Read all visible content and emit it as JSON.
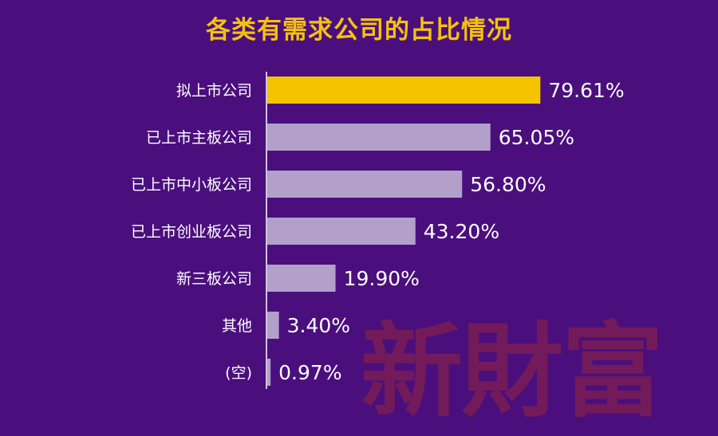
{
  "chart_data": {
    "type": "bar",
    "orientation": "horizontal",
    "title": "各类有需求公司的占比情况",
    "categories": [
      "拟上市公司",
      "已上市主板公司",
      "已上市中小板公司",
      "已上市创业板公司",
      "新三板公司",
      "其他",
      "(空)"
    ],
    "values": [
      79.61,
      65.05,
      56.8,
      43.2,
      19.9,
      3.4,
      0.97
    ],
    "value_labels": [
      "79.61%",
      "65.05%",
      "56.80%",
      "43.20%",
      "19.90%",
      "3.40%",
      "0.97%"
    ],
    "highlight_index": 0,
    "xlim": [
      0,
      100
    ],
    "grid": false,
    "legend": "none",
    "colors": {
      "highlight": "#f5c400",
      "bar": "#b3a0ca",
      "background": "#4a0f7d",
      "title": "#f4c20d"
    }
  },
  "watermark": "新財富"
}
